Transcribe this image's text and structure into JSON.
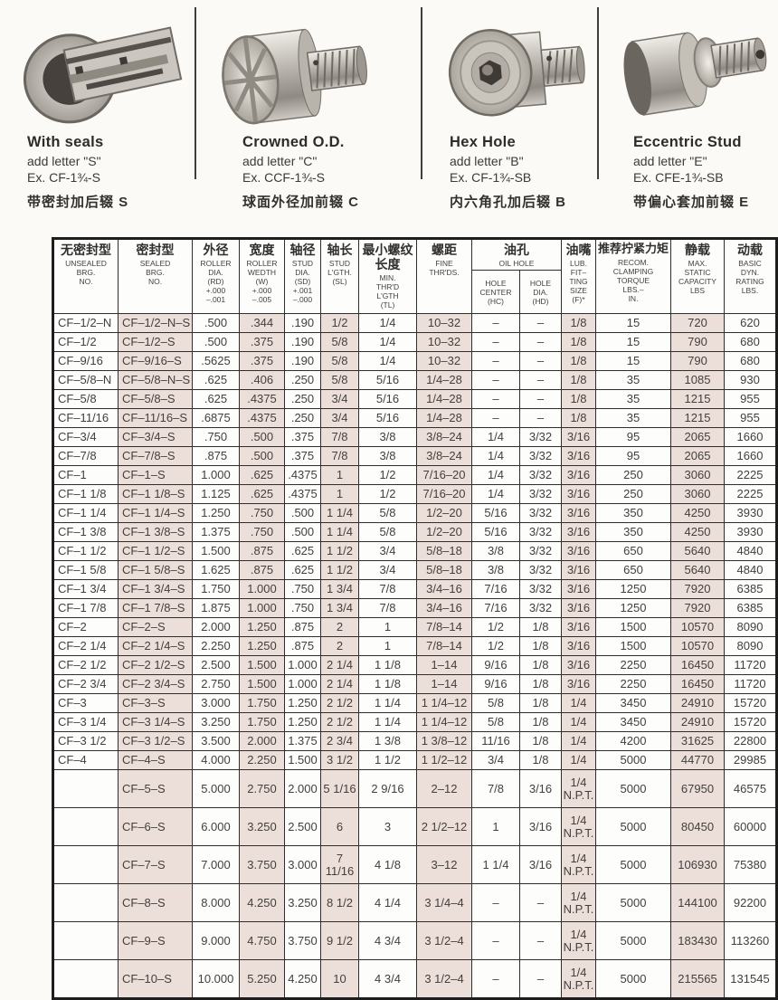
{
  "products": [
    {
      "title": "With  seals",
      "line1": "add letter \"S\"",
      "line2": "Ex. CF-1¾-S",
      "caption_cn": "带密封加后辍 S",
      "image": "sealed-bearing-cutaway-photo"
    },
    {
      "title": "Crowned O.D.",
      "line1": "add letter \"C\"",
      "line2": "Ex. CCF-1¾-S",
      "caption_cn": "球面外径加前辍 C",
      "image": "crowned-od-cam-follower-photo"
    },
    {
      "title": "Hex Hole",
      "line1": "add letter \"B\"",
      "line2": "Ex. CF-1¾-SB",
      "caption_cn": "内六角孔加后辍 B",
      "image": "hex-hole-cam-follower-photo"
    },
    {
      "title": "Eccentric Stud",
      "line1": "add letter \"E\"",
      "line2": "Ex. CFE-1¾-SB",
      "caption_cn": "带偏心套加前辍 E",
      "image": "eccentric-stud-cam-follower-photo"
    }
  ],
  "table": {
    "headers": [
      {
        "cn": "无密封型",
        "en": "UNSEALED\nBRG.\nNO."
      },
      {
        "cn": "密封型",
        "en": "SEALED\nBRG.\nNO."
      },
      {
        "cn": "外径",
        "en": "ROLLER\nDIA.\n(RD)\n+.000\n–.001"
      },
      {
        "cn": "宽度",
        "en": "ROLLER\nWEDTH\n(W)\n+.000\n–.005"
      },
      {
        "cn": "轴径",
        "en": "STUD\nDIA.\n(SD)\n+.001\n–.000"
      },
      {
        "cn": "轴长",
        "en": "STUD\nL'GTH.\n(SL)"
      },
      {
        "cn": "最小螺纹长度",
        "en": "MIN.\nTHR'D\nL'GTH\n(TL)"
      },
      {
        "cn": "螺距",
        "en": "FINE\nTHR'DS."
      },
      {
        "cn": "油孔",
        "en": "OIL HOLE",
        "subs": [
          "HOLE\nCENTER\n(HC)",
          "HOLE\nDIA.\n(HD)"
        ]
      },
      {
        "cn": "油嘴",
        "en": "LUB.\nFIT–\nTING\nSIZE\n(F)*"
      },
      {
        "cn": "推荐拧紧力矩",
        "en": "RECOM.\nCLAMPING\nTORQUE\nLBS.–\nIN."
      },
      {
        "cn": "静载",
        "en": "MAX.\nSTATIC\nCAPACITY\nLBS"
      },
      {
        "cn": "动载",
        "en": "BASIC\nDYN.\nRATING\nLBS."
      }
    ],
    "pink_columns": [
      1,
      3,
      5,
      7,
      10,
      12
    ],
    "tall_rows_start": 24,
    "colors": {
      "tint": "#ecdfda",
      "border": "#2e2e2e"
    },
    "rows": [
      [
        "CF–1/2–N",
        "CF–1/2–N–S",
        ".500",
        ".344",
        ".190",
        "1/2",
        "1/4",
        "10–32",
        "–",
        "–",
        "1/8",
        "15",
        "720",
        "620"
      ],
      [
        "CF–1/2",
        "CF–1/2–S",
        ".500",
        ".375",
        ".190",
        "5/8",
        "1/4",
        "10–32",
        "–",
        "–",
        "1/8",
        "15",
        "790",
        "680"
      ],
      [
        "CF–9/16",
        "CF–9/16–S",
        ".5625",
        ".375",
        ".190",
        "5/8",
        "1/4",
        "10–32",
        "–",
        "–",
        "1/8",
        "15",
        "790",
        "680"
      ],
      [
        "CF–5/8–N",
        "CF–5/8–N–S",
        ".625",
        ".406",
        ".250",
        "5/8",
        "5/16",
        "1/4–28",
        "–",
        "–",
        "1/8",
        "35",
        "1085",
        "930"
      ],
      [
        "CF–5/8",
        "CF–5/8–S",
        ".625",
        ".4375",
        ".250",
        "3/4",
        "5/16",
        "1/4–28",
        "–",
        "–",
        "1/8",
        "35",
        "1215",
        "955"
      ],
      [
        "CF–11/16",
        "CF–11/16–S",
        ".6875",
        ".4375",
        ".250",
        "3/4",
        "5/16",
        "1/4–28",
        "–",
        "–",
        "1/8",
        "35",
        "1215",
        "955"
      ],
      [
        "CF–3/4",
        "CF–3/4–S",
        ".750",
        ".500",
        ".375",
        "7/8",
        "3/8",
        "3/8–24",
        "1/4",
        "3/32",
        "3/16",
        "95",
        "2065",
        "1660"
      ],
      [
        "CF–7/8",
        "CF–7/8–S",
        ".875",
        ".500",
        ".375",
        "7/8",
        "3/8",
        "3/8–24",
        "1/4",
        "3/32",
        "3/16",
        "95",
        "2065",
        "1660"
      ],
      [
        "CF–1",
        "CF–1–S",
        "1.000",
        ".625",
        ".4375",
        "1",
        "1/2",
        "7/16–20",
        "1/4",
        "3/32",
        "3/16",
        "250",
        "3060",
        "2225"
      ],
      [
        "CF–1 1/8",
        "CF–1 1/8–S",
        "1.125",
        ".625",
        ".4375",
        "1",
        "1/2",
        "7/16–20",
        "1/4",
        "3/32",
        "3/16",
        "250",
        "3060",
        "2225"
      ],
      [
        "CF–1 1/4",
        "CF–1 1/4–S",
        "1.250",
        ".750",
        ".500",
        "1 1/4",
        "5/8",
        "1/2–20",
        "5/16",
        "3/32",
        "3/16",
        "350",
        "4250",
        "3930"
      ],
      [
        "CF–1 3/8",
        "CF–1 3/8–S",
        "1.375",
        ".750",
        ".500",
        "1 1/4",
        "5/8",
        "1/2–20",
        "5/16",
        "3/32",
        "3/16",
        "350",
        "4250",
        "3930"
      ],
      [
        "CF–1 1/2",
        "CF–1 1/2–S",
        "1.500",
        ".875",
        ".625",
        "1 1/2",
        "3/4",
        "5/8–18",
        "3/8",
        "3/32",
        "3/16",
        "650",
        "5640",
        "4840"
      ],
      [
        "CF–1 5/8",
        "CF–1 5/8–S",
        "1.625",
        ".875",
        ".625",
        "1 1/2",
        "3/4",
        "5/8–18",
        "3/8",
        "3/32",
        "3/16",
        "650",
        "5640",
        "4840"
      ],
      [
        "CF–1 3/4",
        "CF–1 3/4–S",
        "1.750",
        "1.000",
        ".750",
        "1 3/4",
        "7/8",
        "3/4–16",
        "7/16",
        "3/32",
        "3/16",
        "1250",
        "7920",
        "6385"
      ],
      [
        "CF–1 7/8",
        "CF–1 7/8–S",
        "1.875",
        "1.000",
        ".750",
        "1 3/4",
        "7/8",
        "3/4–16",
        "7/16",
        "3/32",
        "3/16",
        "1250",
        "7920",
        "6385"
      ],
      [
        "CF–2",
        "CF–2–S",
        "2.000",
        "1.250",
        ".875",
        "2",
        "1",
        "7/8–14",
        "1/2",
        "1/8",
        "3/16",
        "1500",
        "10570",
        "8090"
      ],
      [
        "CF–2 1/4",
        "CF–2 1/4–S",
        "2.250",
        "1.250",
        ".875",
        "2",
        "1",
        "7/8–14",
        "1/2",
        "1/8",
        "3/16",
        "1500",
        "10570",
        "8090"
      ],
      [
        "CF–2 1/2",
        "CF–2 1/2–S",
        "2.500",
        "1.500",
        "1.000",
        "2 1/4",
        "1 1/8",
        "1–14",
        "9/16",
        "1/8",
        "3/16",
        "2250",
        "16450",
        "11720"
      ],
      [
        "CF–2 3/4",
        "CF–2 3/4–S",
        "2.750",
        "1.500",
        "1.000",
        "2 1/4",
        "1 1/8",
        "1–14",
        "9/16",
        "1/8",
        "3/16",
        "2250",
        "16450",
        "11720"
      ],
      [
        "CF–3",
        "CF–3–S",
        "3.000",
        "1.750",
        "1.250",
        "2 1/2",
        "1 1/4",
        "1 1/4–12",
        "5/8",
        "1/8",
        "1/4",
        "3450",
        "24910",
        "15720"
      ],
      [
        "CF–3 1/4",
        "CF–3 1/4–S",
        "3.250",
        "1.750",
        "1.250",
        "2 1/2",
        "1 1/4",
        "1 1/4–12",
        "5/8",
        "1/8",
        "1/4",
        "3450",
        "24910",
        "15720"
      ],
      [
        "CF–3 1/2",
        "CF–3 1/2–S",
        "3.500",
        "2.000",
        "1.375",
        "2 3/4",
        "1 3/8",
        "1 3/8–12",
        "11/16",
        "1/8",
        "1/4",
        "4200",
        "31625",
        "22800"
      ],
      [
        "CF–4",
        "CF–4–S",
        "4.000",
        "2.250",
        "1.500",
        "3 1/2",
        "1 1/2",
        "1 1/2–12",
        "3/4",
        "1/8",
        "1/4",
        "5000",
        "44770",
        "29985"
      ],
      [
        "",
        "CF–5–S",
        "5.000",
        "2.750",
        "2.000",
        "5 1/16",
        "2 9/16",
        "2–12",
        "7/8",
        "3/16",
        "1/4\nN.P.T.",
        "5000",
        "67950",
        "46575"
      ],
      [
        "",
        "CF–6–S",
        "6.000",
        "3.250",
        "2.500",
        "6",
        "3",
        "2 1/2–12",
        "1",
        "3/16",
        "1/4\nN.P.T.",
        "5000",
        "80450",
        "60000"
      ],
      [
        "",
        "CF–7–S",
        "7.000",
        "3.750",
        "3.000",
        "7 11/16",
        "4 1/8",
        "3–12",
        "1 1/4",
        "3/16",
        "1/4\nN.P.T.",
        "5000",
        "106930",
        "75380"
      ],
      [
        "",
        "CF–8–S",
        "8.000",
        "4.250",
        "3.250",
        "8 1/2",
        "4 1/4",
        "3 1/4–4",
        "–",
        "–",
        "1/4\nN.P.T.",
        "5000",
        "144100",
        "92200"
      ],
      [
        "",
        "CF–9–S",
        "9.000",
        "4.750",
        "3.750",
        "9 1/2",
        "4 3/4",
        "3 1/2–4",
        "–",
        "–",
        "1/4\nN.P.T.",
        "5000",
        "183430",
        "113260"
      ],
      [
        "",
        "CF–10–S",
        "10.000",
        "5.250",
        "4.250",
        "10",
        "4 3/4",
        "3 1/2–4",
        "–",
        "–",
        "1/4\nN.P.T.",
        "5000",
        "215565",
        "131545"
      ]
    ]
  }
}
